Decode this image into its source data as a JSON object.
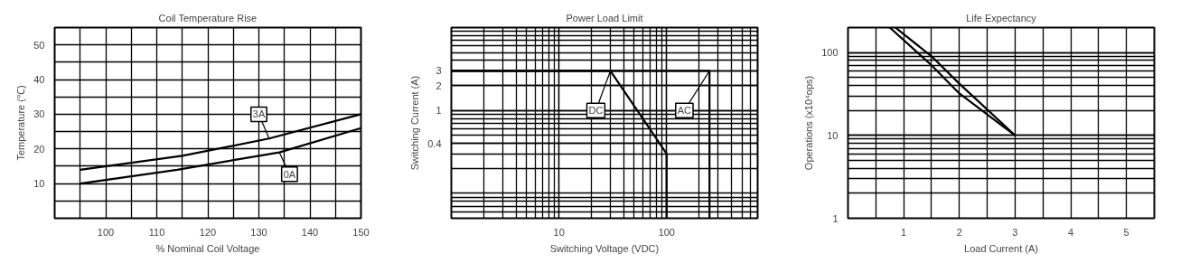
{
  "chart_data": [
    {
      "type": "line",
      "title": "Coil Temperature Rise",
      "xlabel": "% Nominal Coil Voltage",
      "ylabel": "Temperature (℃)",
      "series": [
        {
          "color": "#000000",
          "x": [
            95,
            115,
            132,
            150
          ],
          "values": [
            14,
            18,
            23,
            30
          ]
        },
        {
          "color": "#000000",
          "x": [
            95,
            114,
            134,
            150
          ],
          "values": [
            10,
            14,
            19,
            26
          ]
        }
      ],
      "annotations": [
        {
          "text": "3A",
          "x": 130,
          "y": 30
        },
        {
          "text": "0A",
          "x": 136,
          "y": 12.7
        }
      ],
      "xlim": [
        90,
        150
      ],
      "ylim": [
        0,
        55
      ],
      "xticks": [
        {
          "value": 90,
          "label": null
        },
        {
          "value": 95,
          "label": null
        },
        100,
        {
          "value": 105,
          "label": null
        },
        110,
        {
          "value": 115,
          "label": null
        },
        120,
        {
          "value": 125,
          "label": null
        },
        130,
        {
          "value": 135,
          "label": null
        },
        140,
        {
          "value": 145,
          "label": null
        },
        150
      ],
      "yticks": [
        {
          "value": 0,
          "label": null
        },
        {
          "value": 5,
          "label": null
        },
        10,
        {
          "value": 15,
          "label": null
        },
        20,
        {
          "value": 25,
          "label": null
        },
        30,
        {
          "value": 35,
          "label": null
        },
        40,
        {
          "value": 45,
          "label": null
        },
        50,
        {
          "value": 55,
          "label": null
        }
      ],
      "grid": true,
      "marker": "none",
      "line_style": "solid"
    },
    {
      "type": "line",
      "title": "Power Load Limit",
      "xlabel": "Switching Voltage (VDC)",
      "ylabel": "Switching Current (A)",
      "series": [
        {
          "color": "#000000",
          "x": [
            1,
            30,
            100,
            100
          ],
          "values": [
            3,
            3,
            0.3,
            0.05
          ]
        },
        {
          "color": "#000000",
          "x": [
            1,
            250,
            250
          ],
          "values": [
            3,
            3,
            0.05
          ]
        }
      ],
      "annotations": [
        {
          "text": "DC",
          "x": 22,
          "y": 1
        },
        {
          "text": "AC",
          "x": 146,
          "y": 1
        }
      ],
      "xlim": [
        1,
        700
      ],
      "ylim": [
        0.05,
        10
      ],
      "xticks": [
        10,
        100
      ],
      "yticks": [
        0.4,
        1,
        2,
        3
      ],
      "log": "xy",
      "grid": true,
      "marker": "none",
      "line_style": "solid"
    },
    {
      "type": "line",
      "title": "Life Expectancy",
      "xlabel": "Load Current (A)",
      "ylabel": "Operations (x10⁴ops)",
      "series": [
        {
          "color": "#000000",
          "x": [
            0.75,
            1.5,
            2,
            3
          ],
          "values": [
            200,
            70,
            32,
            10
          ]
        },
        {
          "color": "#000000",
          "x": [
            0.85,
            1.5,
            2,
            3
          ],
          "values": [
            200,
            90,
            42,
            10
          ]
        }
      ],
      "xlim": [
        0,
        5.5
      ],
      "ylim": [
        1,
        200
      ],
      "xticks": [
        {
          "value": 0.5,
          "label": null
        },
        1,
        {
          "value": 1.5,
          "label": null
        },
        2,
        {
          "value": 2.5,
          "label": null
        },
        3,
        {
          "value": 3.5,
          "label": null
        },
        4,
        {
          "value": 4.5,
          "label": null
        },
        5
      ],
      "yticks": [
        1,
        10,
        100
      ],
      "log": "y",
      "grid": true,
      "marker": "none",
      "line_style": "solid"
    }
  ]
}
